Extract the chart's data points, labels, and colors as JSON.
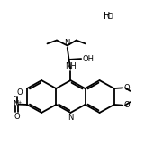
{
  "bg_color": "#ffffff",
  "line_color": "#000000",
  "lw": 1.3,
  "fig_width": 1.81,
  "fig_height": 1.74,
  "dpi": 100,
  "ring_r": 0.103,
  "lrc": [
    0.255,
    0.385
  ],
  "mrc": [
    0.433,
    0.385
  ],
  "rrc": [
    0.611,
    0.385
  ],
  "fs_main": 6.0,
  "fs_small": 5.2
}
